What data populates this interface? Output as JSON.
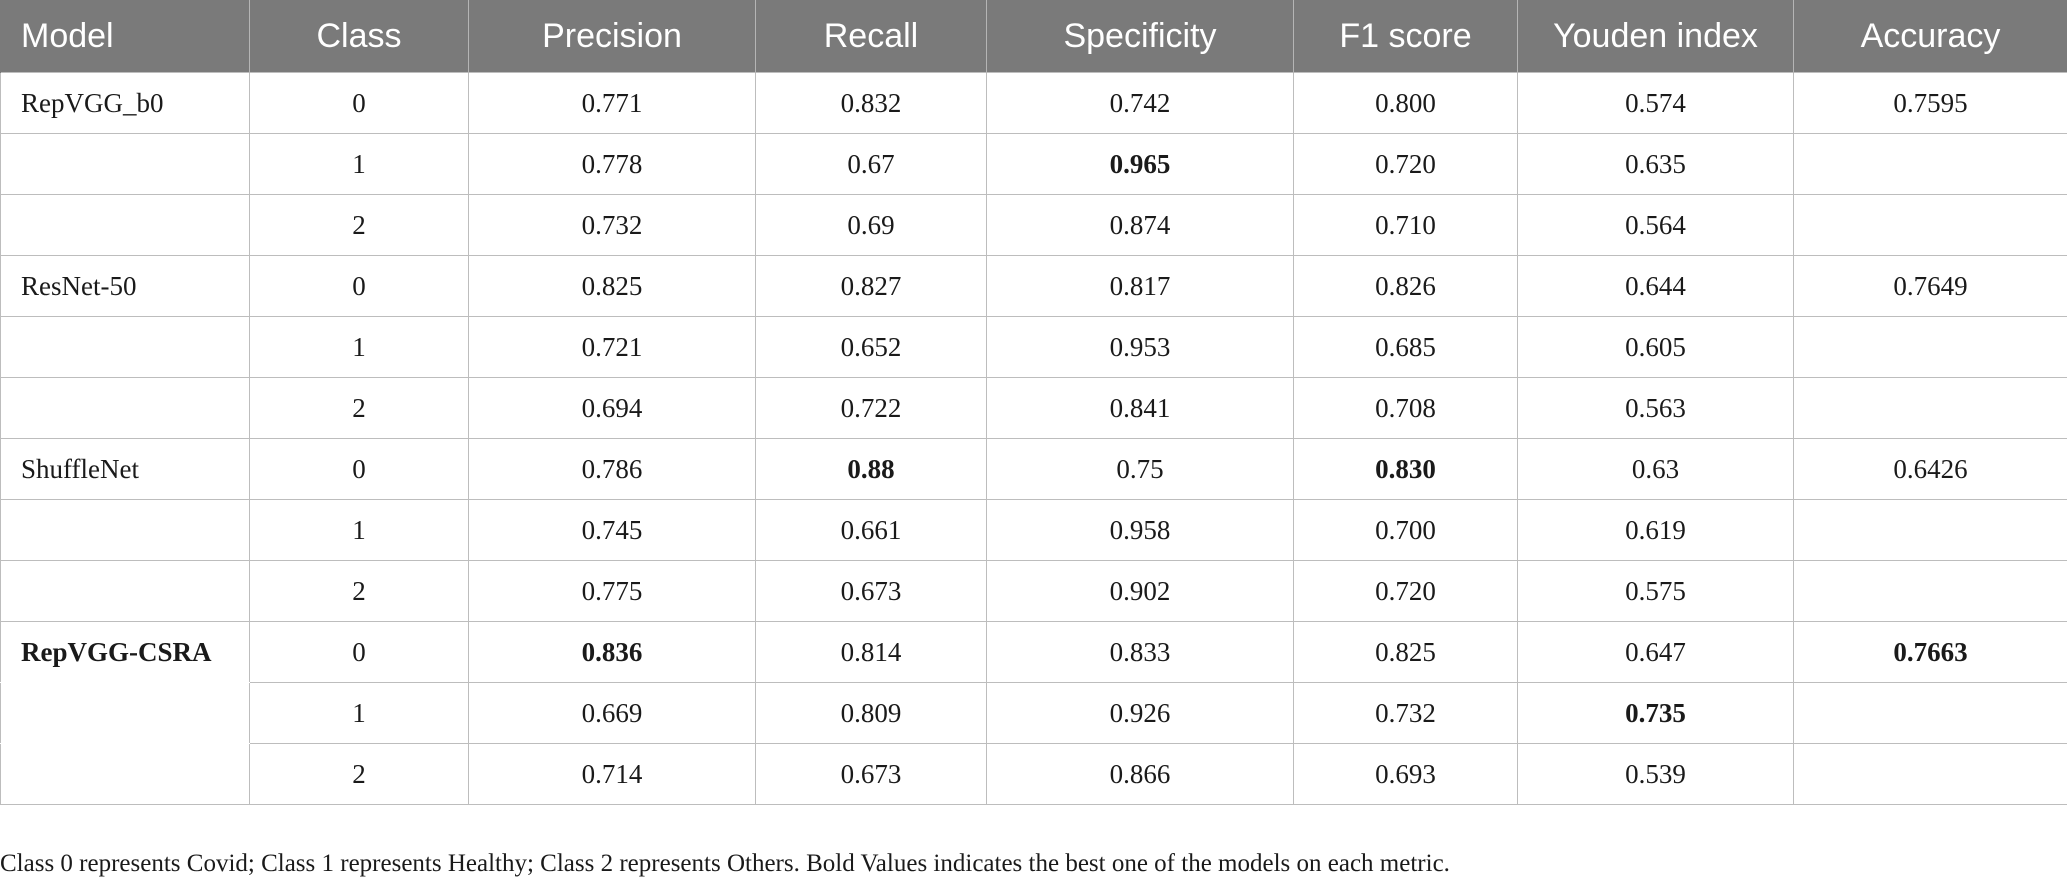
{
  "table": {
    "headers": [
      "Model",
      "Class",
      "Precision",
      "Recall",
      "Specificity",
      "F1 score",
      "Youden index",
      "Accuracy"
    ],
    "rows": [
      {
        "model": "RepVGG_b0",
        "class": "0",
        "precision": "0.771",
        "recall": "0.832",
        "specificity": "0.742",
        "f1": "0.800",
        "youden": "0.574",
        "accuracy": "0.7595"
      },
      {
        "model": "",
        "class": "1",
        "precision": "0.778",
        "recall": "0.67",
        "specificity": "0.965",
        "f1": "0.720",
        "youden": "0.635",
        "accuracy": ""
      },
      {
        "model": "",
        "class": "2",
        "precision": "0.732",
        "recall": "0.69",
        "specificity": "0.874",
        "f1": "0.710",
        "youden": "0.564",
        "accuracy": ""
      },
      {
        "model": "ResNet-50",
        "class": "0",
        "precision": "0.825",
        "recall": "0.827",
        "specificity": "0.817",
        "f1": "0.826",
        "youden": "0.644",
        "accuracy": "0.7649"
      },
      {
        "model": "",
        "class": "1",
        "precision": "0.721",
        "recall": "0.652",
        "specificity": "0.953",
        "f1": "0.685",
        "youden": "0.605",
        "accuracy": ""
      },
      {
        "model": "",
        "class": "2",
        "precision": "0.694",
        "recall": "0.722",
        "specificity": "0.841",
        "f1": "0.708",
        "youden": "0.563",
        "accuracy": ""
      },
      {
        "model": "ShuffleNet",
        "class": "0",
        "precision": "0.786",
        "recall": "0.88",
        "specificity": "0.75",
        "f1": "0.830",
        "youden": "0.63",
        "accuracy": "0.6426"
      },
      {
        "model": "",
        "class": "1",
        "precision": "0.745",
        "recall": "0.661",
        "specificity": "0.958",
        "f1": "0.700",
        "youden": "0.619",
        "accuracy": ""
      },
      {
        "model": "",
        "class": "2",
        "precision": "0.775",
        "recall": "0.673",
        "specificity": "0.902",
        "f1": "0.720",
        "youden": "0.575",
        "accuracy": ""
      },
      {
        "model": "RepVGG-CSRA",
        "class": "0",
        "precision": "0.836",
        "recall": "0.814",
        "specificity": "0.833",
        "f1": "0.825",
        "youden": "0.647",
        "accuracy": "0.7663"
      },
      {
        "model": "",
        "class": "1",
        "precision": "0.669",
        "recall": "0.809",
        "specificity": "0.926",
        "f1": "0.732",
        "youden": "0.735",
        "accuracy": ""
      },
      {
        "model": "",
        "class": "2",
        "precision": "0.714",
        "recall": "0.673",
        "specificity": "0.866",
        "f1": "0.693",
        "youden": "0.539",
        "accuracy": ""
      }
    ],
    "bold_cells": [
      "1.specificity",
      "6.recall",
      "6.f1",
      "9.model",
      "9.precision",
      "9.accuracy",
      "10.youden"
    ]
  },
  "footnote": "Class 0 represents Covid; Class 1 represents Healthy; Class 2 represents Others. Bold Values indicates the best one of the models on each metric."
}
